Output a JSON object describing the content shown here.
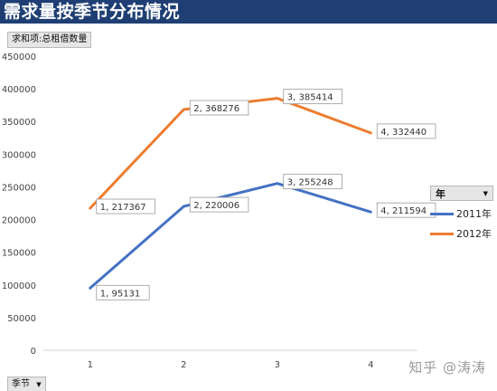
{
  "title": "需求量按季节分布情况",
  "value_field_label": "求和项:总租借数量",
  "axis_field_label": "季节",
  "legend_title": "年",
  "watermark": "知乎 @涛涛",
  "colors": {
    "title_bg": "#1f3f74",
    "series_2011": "#4472c4",
    "series_2012": "#ed7d31"
  },
  "chart_data": {
    "type": "line",
    "x": [
      1,
      2,
      3,
      4
    ],
    "ylim": [
      0,
      450000
    ],
    "yticks": [
      0,
      50000,
      100000,
      150000,
      200000,
      250000,
      300000,
      350000,
      400000,
      450000
    ],
    "grid": false,
    "legend_position": "right",
    "series": [
      {
        "name": "2011年",
        "values": [
          95131,
          220006,
          255248,
          211594
        ],
        "color": "#4472c4",
        "labels": [
          "1, 95131",
          "2, 220006",
          "3, 255248",
          "4, 211594"
        ]
      },
      {
        "name": "2012年",
        "values": [
          217367,
          368276,
          385414,
          332440
        ],
        "color": "#ed7d31",
        "labels": [
          "1, 217367",
          "2, 368276",
          "3, 385414",
          "4, 332440"
        ]
      }
    ]
  }
}
